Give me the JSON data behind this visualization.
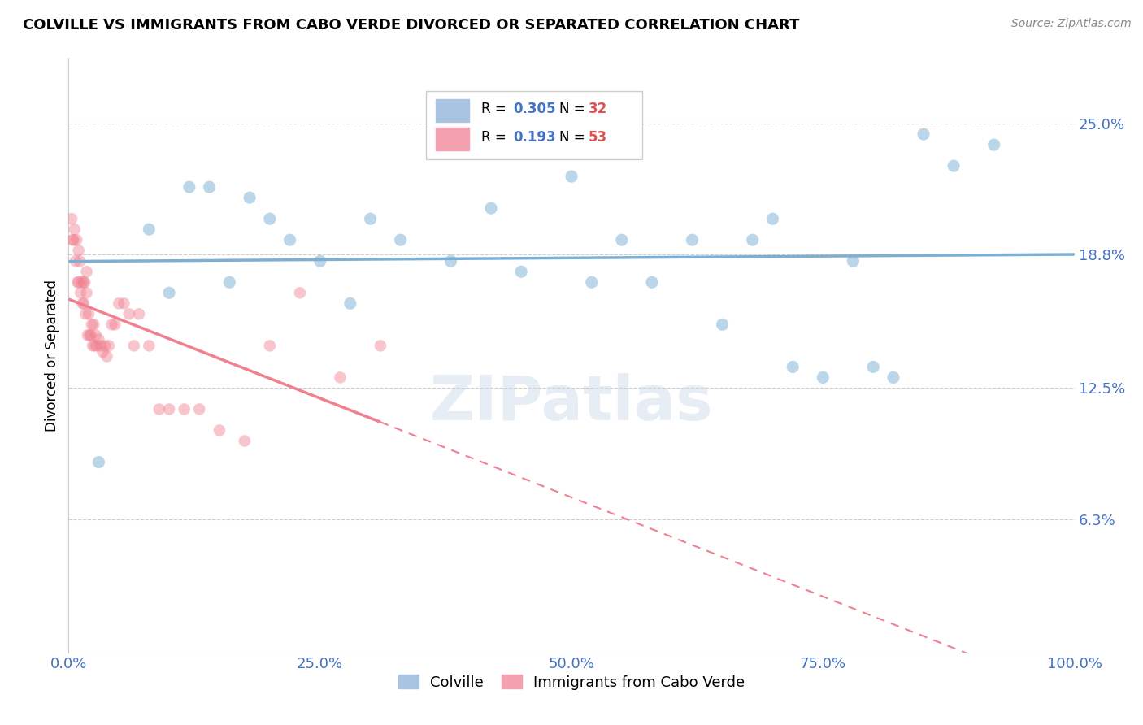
{
  "title": "COLVILLE VS IMMIGRANTS FROM CABO VERDE DIVORCED OR SEPARATED CORRELATION CHART",
  "source_text": "Source: ZipAtlas.com",
  "ylabel": "Divorced or Separated",
  "watermark": "ZIPatlas",
  "xmin": 0.0,
  "xmax": 1.0,
  "ymin": 0.0,
  "ymax": 0.281,
  "yticks": [
    0.0,
    0.063,
    0.125,
    0.188,
    0.25
  ],
  "ytick_labels": [
    "",
    "6.3%",
    "12.5%",
    "18.8%",
    "25.0%"
  ],
  "xtick_labels": [
    "0.0%",
    "25.0%",
    "50.0%",
    "75.0%",
    "100.0%"
  ],
  "xticks": [
    0.0,
    0.25,
    0.5,
    0.75,
    1.0
  ],
  "colville_color": "#7bafd4",
  "cabo_verde_color": "#f08090",
  "colville_scatter_x": [
    0.03,
    0.08,
    0.1,
    0.12,
    0.14,
    0.16,
    0.18,
    0.2,
    0.22,
    0.25,
    0.28,
    0.3,
    0.33,
    0.38,
    0.42,
    0.45,
    0.5,
    0.52,
    0.55,
    0.58,
    0.62,
    0.65,
    0.68,
    0.7,
    0.72,
    0.75,
    0.78,
    0.8,
    0.82,
    0.85,
    0.88,
    0.92
  ],
  "colville_scatter_y": [
    0.09,
    0.2,
    0.17,
    0.22,
    0.22,
    0.175,
    0.215,
    0.205,
    0.195,
    0.185,
    0.165,
    0.205,
    0.195,
    0.185,
    0.21,
    0.18,
    0.225,
    0.175,
    0.195,
    0.175,
    0.195,
    0.155,
    0.195,
    0.205,
    0.135,
    0.13,
    0.185,
    0.135,
    0.13,
    0.245,
    0.23,
    0.24
  ],
  "cabo_verde_scatter_x": [
    0.003,
    0.004,
    0.005,
    0.006,
    0.007,
    0.008,
    0.009,
    0.01,
    0.01,
    0.011,
    0.012,
    0.013,
    0.014,
    0.015,
    0.015,
    0.016,
    0.017,
    0.018,
    0.018,
    0.019,
    0.02,
    0.021,
    0.022,
    0.023,
    0.024,
    0.025,
    0.026,
    0.027,
    0.028,
    0.03,
    0.032,
    0.034,
    0.036,
    0.038,
    0.04,
    0.043,
    0.046,
    0.05,
    0.055,
    0.06,
    0.065,
    0.07,
    0.08,
    0.09,
    0.1,
    0.115,
    0.13,
    0.15,
    0.175,
    0.2,
    0.23,
    0.27,
    0.31
  ],
  "cabo_verde_scatter_y": [
    0.205,
    0.195,
    0.195,
    0.2,
    0.185,
    0.195,
    0.175,
    0.19,
    0.175,
    0.185,
    0.17,
    0.175,
    0.165,
    0.175,
    0.165,
    0.175,
    0.16,
    0.17,
    0.18,
    0.15,
    0.16,
    0.15,
    0.15,
    0.155,
    0.145,
    0.155,
    0.145,
    0.15,
    0.145,
    0.148,
    0.145,
    0.142,
    0.145,
    0.14,
    0.145,
    0.155,
    0.155,
    0.165,
    0.165,
    0.16,
    0.145,
    0.16,
    0.145,
    0.115,
    0.115,
    0.115,
    0.115,
    0.105,
    0.1,
    0.145,
    0.17,
    0.13,
    0.145
  ],
  "grid_color": "#cccccc",
  "background_color": "#ffffff",
  "title_fontsize": 13,
  "tick_label_color": "#4472c4"
}
